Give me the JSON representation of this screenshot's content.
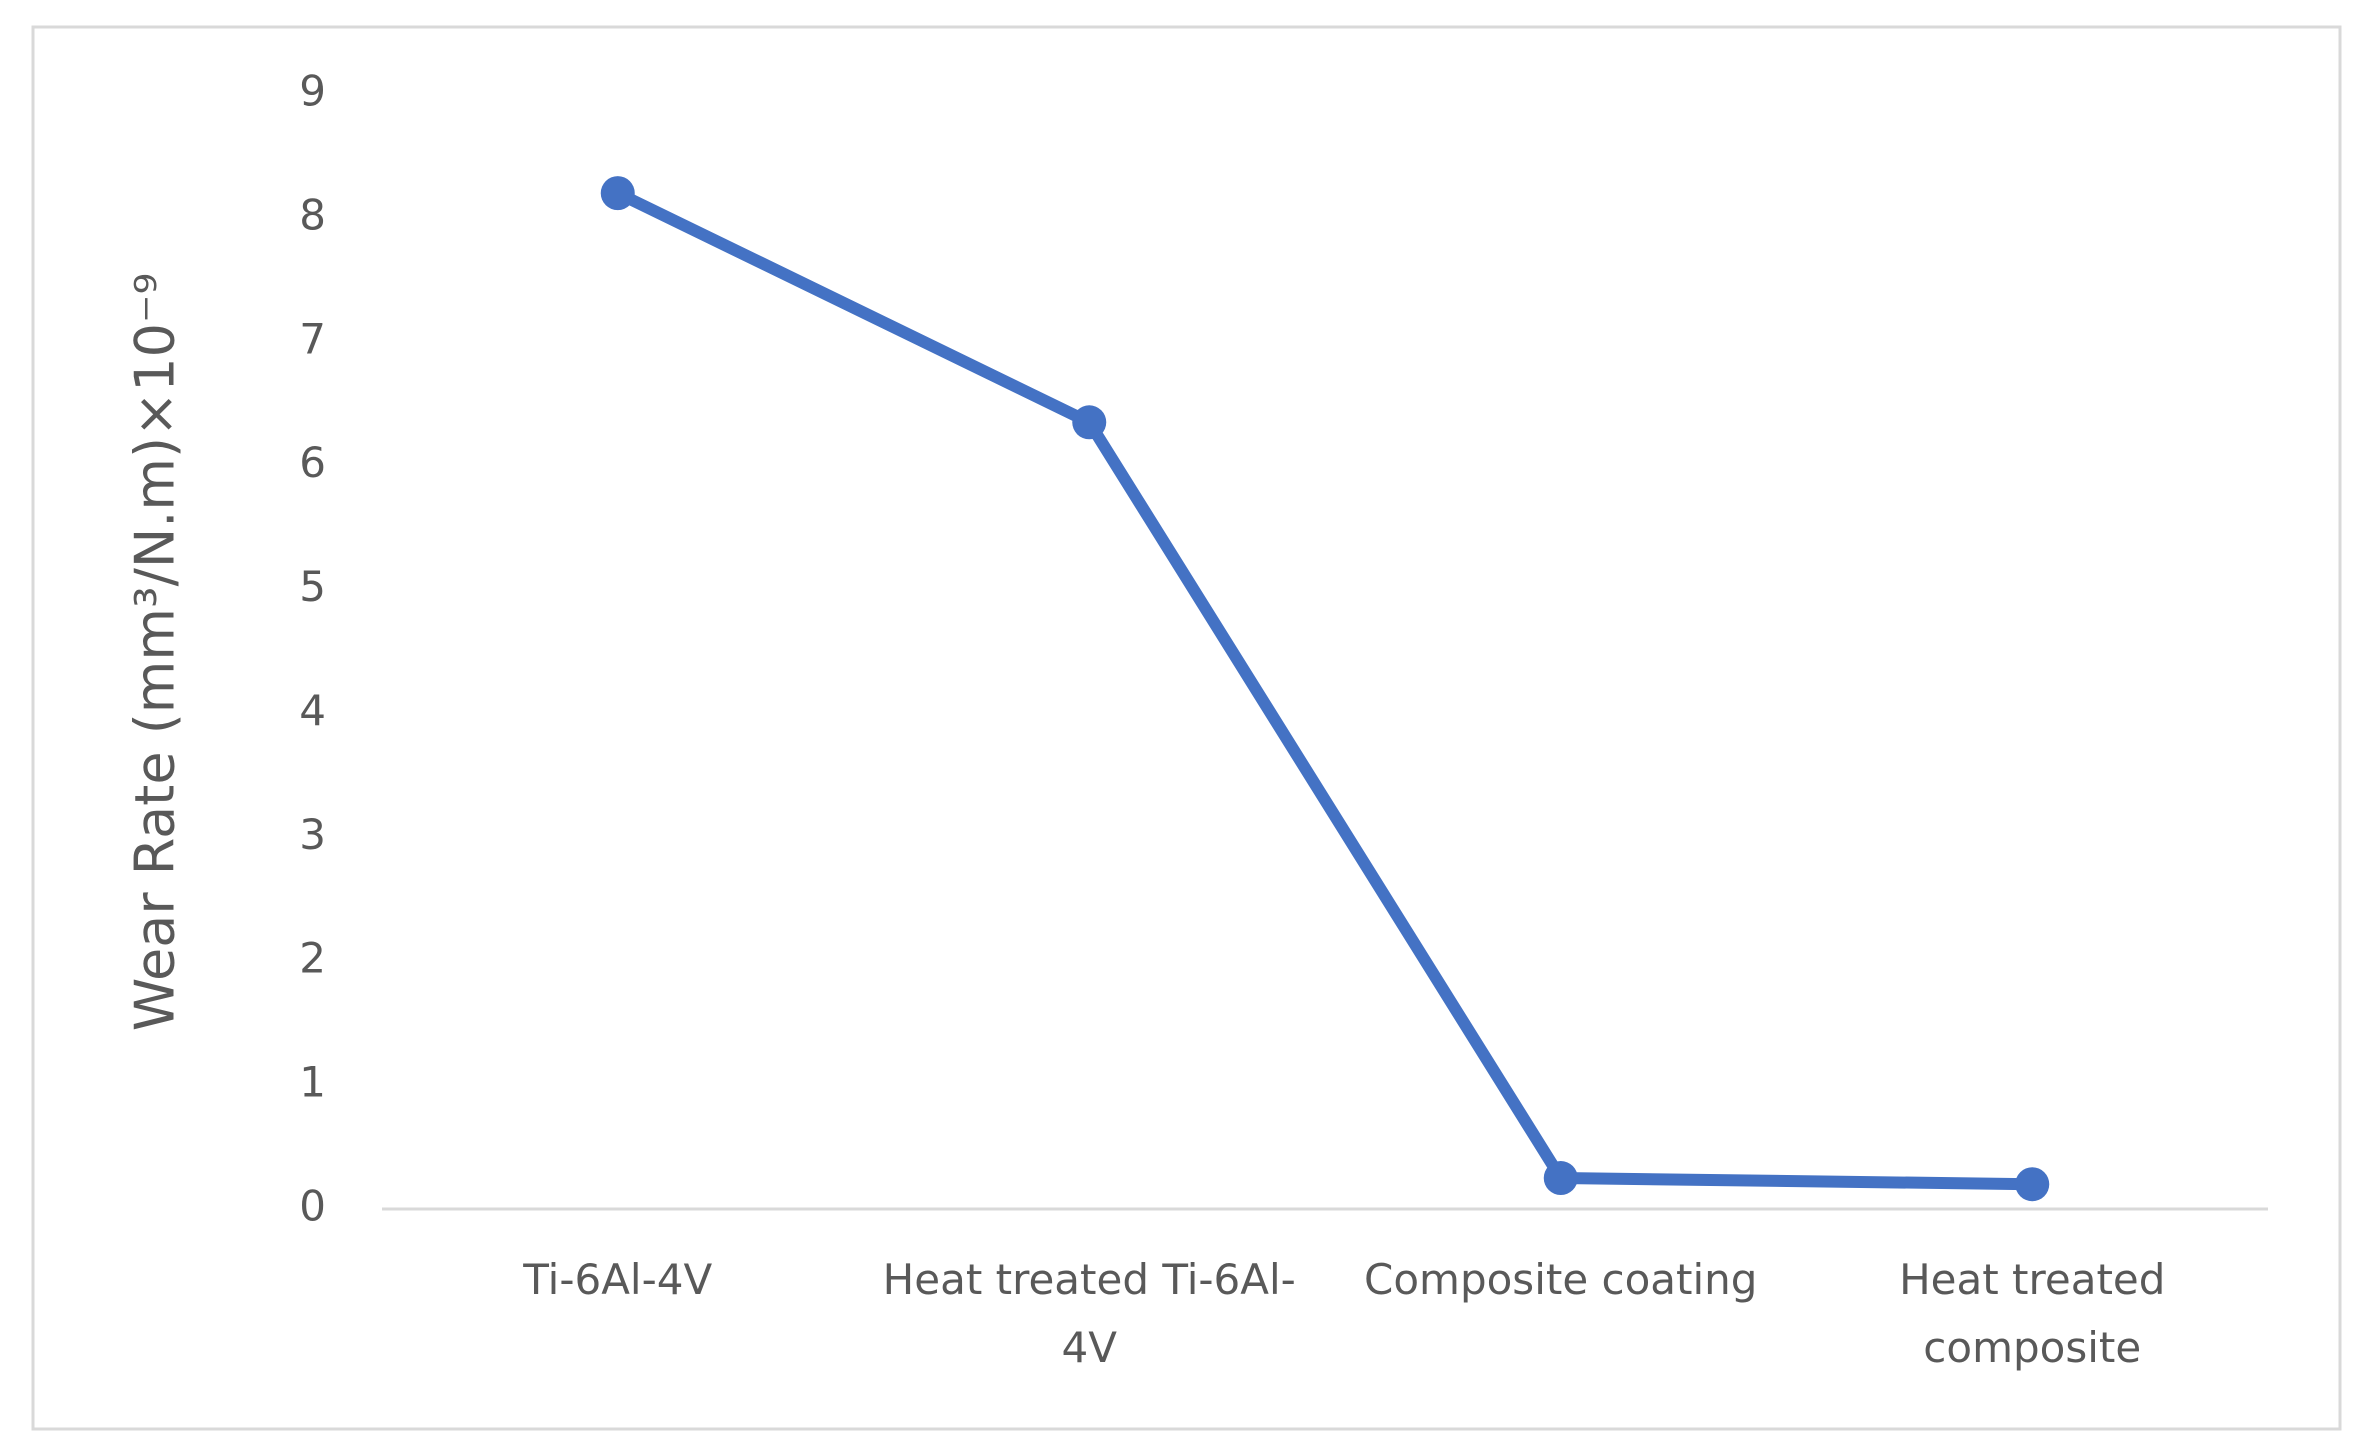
{
  "chart_data": {
    "type": "line",
    "y_label": "Wear Rate (mm³/N.m)×10⁻⁹",
    "categories": [
      [
        "Ti-6Al-4V"
      ],
      [
        "Heat treated Ti-6Al-",
        "4V"
      ],
      [
        "Composite coating"
      ],
      [
        "Heat treated",
        "composite"
      ]
    ],
    "series": [
      {
        "color": "#4472c4",
        "values": [
          8.2,
          6.35,
          0.25,
          0.2
        ]
      }
    ],
    "ylim": [
      0,
      9
    ],
    "yticks": [
      0,
      1,
      2,
      3,
      4,
      5,
      6,
      7,
      8,
      9
    ],
    "grid": false
  }
}
